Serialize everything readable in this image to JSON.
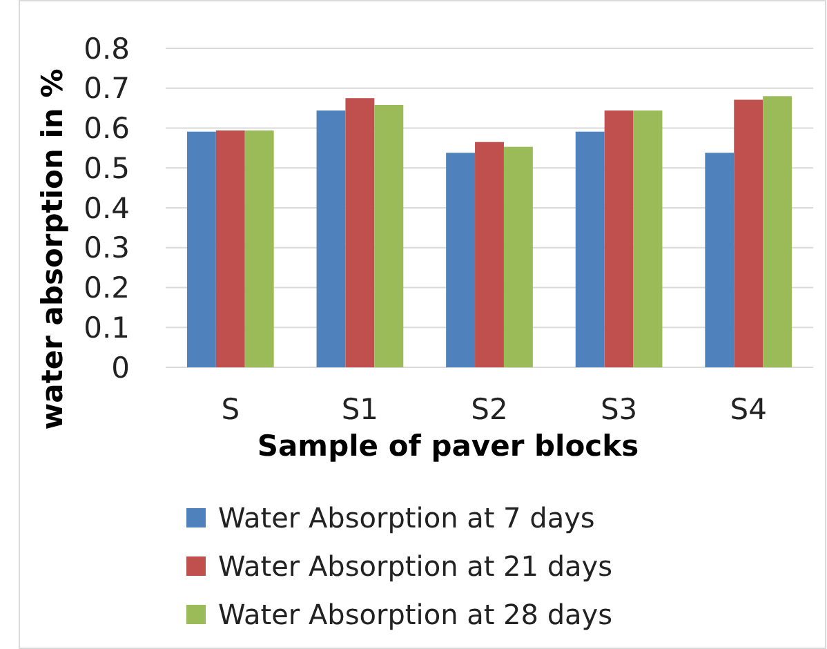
{
  "chart_data": {
    "type": "bar",
    "xlabel": "Sample of paver blocks",
    "ylabel": "water absorption in %",
    "categories": [
      "S",
      "S1",
      "S2",
      "S3",
      "S4"
    ],
    "series": [
      {
        "name": "Water Absorption at 7 days",
        "color": "#4f81bd",
        "values": [
          0.591,
          0.644,
          0.538,
          0.591,
          0.538
        ]
      },
      {
        "name": "Water Absorption at 21 days",
        "color": "#c0504d",
        "values": [
          0.594,
          0.675,
          0.565,
          0.644,
          0.671
        ]
      },
      {
        "name": "Water Absorption at 28 days",
        "color": "#9bbb59",
        "values": [
          0.594,
          0.658,
          0.553,
          0.644,
          0.68
        ]
      }
    ],
    "ylim": [
      0,
      0.8
    ],
    "yticks": [
      0,
      0.1,
      0.2,
      0.3,
      0.4,
      0.5,
      0.6,
      0.7,
      0.8
    ],
    "grid": "y",
    "legend": "bottom"
  }
}
